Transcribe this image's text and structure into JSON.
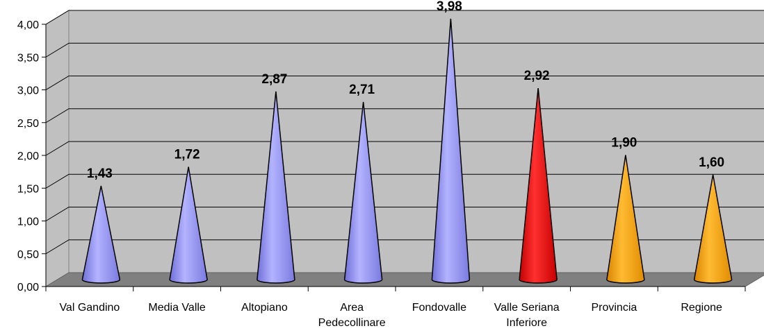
{
  "chart_data": {
    "type": "bar",
    "bar_shape": "cone",
    "categories": [
      [
        "Val Gandino"
      ],
      [
        "Media Valle"
      ],
      [
        "Altopiano"
      ],
      [
        "Area",
        "Pedecollinare"
      ],
      [
        "Fondovalle"
      ],
      [
        "Valle Seriana",
        "Inferiore"
      ],
      [
        "Provincia"
      ],
      [
        "Regione"
      ]
    ],
    "values": [
      1.43,
      1.72,
      2.87,
      2.71,
      3.98,
      2.92,
      1.9,
      1.6
    ],
    "data_labels": [
      "1,43",
      "1,72",
      "2,87",
      "2,71",
      "3,98",
      "2,92",
      "1,90",
      "1,60"
    ],
    "colors": [
      "#9999ff",
      "#9999ff",
      "#9999ff",
      "#9999ff",
      "#9999ff",
      "#ff0000",
      "#ffa500",
      "#ffa500"
    ],
    "ylim": [
      0,
      4
    ],
    "yticks": [
      0,
      0.5,
      1,
      1.5,
      2,
      2.5,
      3,
      3.5,
      4
    ],
    "ytick_labels": [
      "0,00",
      "0,50",
      "1,00",
      "1,50",
      "2,00",
      "2,50",
      "3,00",
      "3,50",
      "4,00"
    ],
    "grid": true,
    "wall_color": "#c0c0c0",
    "floor_color": "#808080"
  }
}
